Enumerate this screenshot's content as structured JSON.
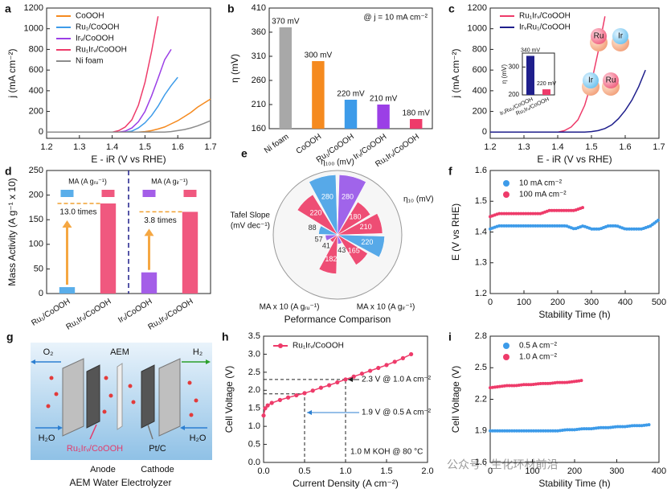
{
  "chart_data": [
    {
      "type": "line",
      "panel": "a",
      "xlabel": "E - iR (V vs RHE)",
      "ylabel": "j (mA cm⁻²)",
      "x": [
        1.2,
        1.22,
        1.24,
        1.26,
        1.28,
        1.3,
        1.32,
        1.34,
        1.36,
        1.38,
        1.4,
        1.42,
        1.44,
        1.46,
        1.48,
        1.5,
        1.52,
        1.54,
        1.56,
        1.58,
        1.6,
        1.62,
        1.64,
        1.66,
        1.68,
        1.7
      ],
      "xlim": [
        1.2,
        1.7
      ],
      "xticks": [
        1.2,
        1.3,
        1.4,
        1.5,
        1.6,
        1.7
      ],
      "ylim": [
        -60,
        1200
      ],
      "yticks": [
        0,
        200,
        400,
        600,
        800,
        1000,
        1200
      ],
      "series": [
        {
          "name": "CoOOH",
          "color": "#f58a1f",
          "values": [
            0,
            0,
            0,
            0,
            0,
            0,
            0,
            0,
            0,
            0,
            0,
            0,
            0,
            0,
            0,
            5,
            15,
            30,
            50,
            80,
            110,
            150,
            190,
            240,
            280,
            320
          ]
        },
        {
          "name": "Ru₁/CoOOH",
          "color": "#3d9be9",
          "values": [
            0,
            0,
            0,
            0,
            0,
            0,
            0,
            0,
            0,
            0,
            0,
            0,
            0,
            10,
            40,
            90,
            160,
            250,
            360,
            450,
            530,
            null,
            null,
            null,
            null,
            null
          ]
        },
        {
          "name": "Irᵥ/CoOOH",
          "color": "#9b3fe6",
          "values": [
            0,
            0,
            0,
            0,
            0,
            0,
            0,
            0,
            0,
            0,
            0,
            0,
            10,
            40,
            100,
            200,
            350,
            520,
            700,
            800,
            null,
            null,
            null,
            null,
            null,
            null
          ]
        },
        {
          "name": "Ru₁Irᵥ/CoOOH",
          "color": "#ee3b6a",
          "values": [
            0,
            0,
            0,
            0,
            0,
            0,
            0,
            0,
            0,
            0,
            0,
            15,
            50,
            120,
            260,
            480,
            780,
            1120,
            null,
            null,
            null,
            null,
            null,
            null,
            null,
            null
          ]
        },
        {
          "name": "Ni foam",
          "color": "#8c8c8c",
          "values": [
            0,
            0,
            0,
            0,
            0,
            0,
            0,
            0,
            0,
            0,
            0,
            0,
            0,
            0,
            0,
            0,
            0,
            0,
            0,
            5,
            15,
            25,
            40,
            60,
            85,
            110
          ]
        }
      ]
    },
    {
      "type": "bar",
      "panel": "b",
      "ylabel": "η (mV)",
      "annotations": [
        "@ j = 10 mA cm⁻²"
      ],
      "categories": [
        "Ni foam",
        "CoOOH",
        "Ru₁/CoOOH",
        "Irᵥ/CoOOH",
        "Ru₁Irᵥ/CoOOH"
      ],
      "values": [
        370,
        300,
        220,
        210,
        180
      ],
      "value_labels": [
        "370 mV",
        "300 mV",
        "220 mV",
        "210 mV",
        "180 mV"
      ],
      "colors": [
        "#a8a8a8",
        "#f58a1f",
        "#3d9be9",
        "#9b3fe6",
        "#ee3b6a"
      ],
      "ylim": [
        160,
        410
      ],
      "yticks": [
        160,
        210,
        260,
        310,
        360,
        410
      ]
    },
    {
      "type": "line",
      "panel": "c",
      "xlabel": "E - iR (V vs RHE)",
      "ylabel": "j (mA cm⁻²)",
      "x": [
        1.2,
        1.22,
        1.24,
        1.26,
        1.28,
        1.3,
        1.32,
        1.34,
        1.36,
        1.38,
        1.4,
        1.42,
        1.44,
        1.46,
        1.48,
        1.5,
        1.52,
        1.54,
        1.56,
        1.58,
        1.6,
        1.62,
        1.64,
        1.66,
        1.68,
        1.7
      ],
      "xlim": [
        1.2,
        1.7
      ],
      "xticks": [
        1.2,
        1.3,
        1.4,
        1.5,
        1.6,
        1.7
      ],
      "ylim": [
        -60,
        1200
      ],
      "yticks": [
        0,
        200,
        400,
        600,
        800,
        1000,
        1200
      ],
      "series": [
        {
          "name": "Ru₁Irᵥ/CoOOH",
          "color": "#ee3b6a",
          "values": [
            0,
            0,
            0,
            0,
            0,
            0,
            0,
            0,
            0,
            0,
            0,
            15,
            50,
            120,
            260,
            480,
            780,
            1120,
            null,
            null,
            null,
            null,
            null,
            null,
            null,
            null
          ]
        },
        {
          "name": "IrᵥRu₁/CoOOH",
          "color": "#1f1f8c",
          "values": [
            0,
            0,
            0,
            0,
            0,
            0,
            0,
            0,
            0,
            0,
            0,
            0,
            0,
            0,
            0,
            5,
            15,
            35,
            70,
            130,
            210,
            310,
            440,
            600,
            null,
            null
          ]
        }
      ],
      "beads": [
        "Ru",
        "Ir",
        "Ir",
        "Ru"
      ],
      "inset": {
        "type": "bar",
        "ylabel": "η (mV)",
        "categories": [
          "IrᵥRu₁/CoOOH",
          "Ru₁Irᵥ/CoOOH"
        ],
        "values": [
          340,
          220
        ],
        "value_labels": [
          "340 mV",
          "220 mV"
        ],
        "colors": [
          "#1f1f8c",
          "#ee3b6a"
        ],
        "ylim": [
          200,
          350
        ],
        "yticks": [
          200,
          300
        ]
      }
    },
    {
      "type": "bar",
      "panel": "d",
      "ylabel": "Mass Activity (A g⁻¹ x 10)",
      "categories": [
        "Ru₁/CoOOH",
        "Ru₁Irᵥ/CoOOH",
        "Irᵥ/CoOOH",
        "Ru₁Irᵥ/CoOOH"
      ],
      "values": [
        13,
        183,
        43,
        166
      ],
      "colors": [
        "#5aaeea",
        "#f0587f",
        "#a45ee8",
        "#f0587f"
      ],
      "legend": [
        "MA (A gᵣᵤ⁻¹)",
        "MA (A gᵢᵣ⁻¹)"
      ],
      "annotations": [
        "13.0 times",
        "3.8 times"
      ],
      "ylim": [
        0,
        250
      ],
      "yticks": [
        0,
        50,
        100,
        150,
        200,
        250
      ]
    },
    {
      "type": "rose",
      "panel": "e",
      "title": "Peformance Comparison",
      "axis_labels": [
        "η₁₀₀ (mV)",
        "η₁₀ (mV)",
        "MA x 10 (A gᵢᵣ⁻¹)",
        "MA x 10 (A gᵣᵤ⁻¹)",
        [
          "Tafel Slope",
          "(mV dec⁻¹)"
        ]
      ],
      "rlim": [
        0,
        300
      ],
      "sectors": [
        {
          "value": 220,
          "color": "#ee4d74"
        },
        {
          "value": 280,
          "color": "#57a9e8"
        },
        {
          "value": 280,
          "color": "#a064ea"
        },
        {
          "value": 180,
          "color": "#ee4d74"
        },
        {
          "value": 210,
          "color": "#ee4d74"
        },
        {
          "value": 220,
          "color": "#57a9e8"
        },
        {
          "value": 165,
          "color": "#ee4d74"
        },
        {
          "value": 43,
          "color": "#a064ea"
        },
        {
          "value": 182,
          "color": "#ee4d74"
        },
        {
          "value": 41,
          "color": "#ee4d74"
        },
        {
          "value": 57,
          "color": "#a064ea"
        },
        {
          "value": 88,
          "color": "#57a9e8"
        }
      ]
    },
    {
      "type": "line",
      "panel": "f",
      "xlabel": "Stability Time (h)",
      "ylabel": "E (V vs RHE)",
      "x": [
        0,
        25,
        50,
        75,
        100,
        125,
        150,
        175,
        200,
        225,
        250,
        275,
        300,
        325,
        350,
        375,
        400,
        425,
        450,
        475,
        500
      ],
      "xlim": [
        0,
        500
      ],
      "xticks": [
        0,
        100,
        200,
        300,
        400,
        500
      ],
      "ylim": [
        1.2,
        1.6
      ],
      "yticks": [
        1.2,
        1.3,
        1.4,
        1.5,
        1.6
      ],
      "series": [
        {
          "name": "10 mA cm⁻²",
          "color": "#3d9be9",
          "values": [
            1.41,
            1.42,
            1.42,
            1.42,
            1.42,
            1.42,
            1.42,
            1.42,
            1.42,
            1.42,
            1.41,
            1.42,
            1.41,
            1.41,
            1.42,
            1.42,
            1.41,
            1.41,
            1.41,
            1.42,
            1.44
          ]
        },
        {
          "name": "100 mA cm⁻²",
          "color": "#ee3b6a",
          "values": [
            1.45,
            1.46,
            1.46,
            1.46,
            1.46,
            1.46,
            1.46,
            1.47,
            1.47,
            1.47,
            1.47,
            1.48,
            null,
            null,
            null,
            null,
            null,
            null,
            null,
            null,
            null
          ]
        }
      ]
    },
    {
      "type": "line",
      "panel": "h",
      "xlabel": "Current Density (A cm⁻²)",
      "ylabel": "Cell Voltage (V)",
      "markers": true,
      "x": [
        0,
        0.02,
        0.05,
        0.1,
        0.2,
        0.3,
        0.4,
        0.5,
        0.6,
        0.7,
        0.8,
        0.9,
        1.0,
        1.1,
        1.2,
        1.3,
        1.4,
        1.5,
        1.6,
        1.7,
        1.8
      ],
      "xlim": [
        0,
        2
      ],
      "xticks": [
        {
          "value": 0,
          "label": "0.0"
        },
        0.5,
        {
          "value": 1,
          "label": "1.0"
        },
        1.5,
        {
          "value": 2,
          "label": "2.0"
        }
      ],
      "ylim": [
        0,
        3.5
      ],
      "yticks": [
        {
          "value": 0,
          "label": "0.0"
        },
        0.5,
        {
          "value": 1,
          "label": "1.0"
        },
        1.5,
        {
          "value": 2,
          "label": "2.0"
        },
        2.5,
        {
          "value": 3,
          "label": "3.0"
        },
        3.5
      ],
      "series": [
        {
          "name": "Ru₁Irᵥ/CoOOH",
          "color": "#ee3b6a",
          "values": [
            1.3,
            1.5,
            1.58,
            1.65,
            1.73,
            1.8,
            1.86,
            1.92,
            1.99,
            2.07,
            2.14,
            2.22,
            2.3,
            2.38,
            2.46,
            2.54,
            2.62,
            2.7,
            2.79,
            2.89,
            3.0
          ]
        }
      ],
      "guides": [
        {
          "x": 1.0,
          "y": 2.3
        },
        {
          "x": 0.5,
          "y": 1.9
        }
      ],
      "annotations": [
        "2.3 V @ 1.0 A cm⁻²",
        "1.9 V @ 0.5 A cm⁻²",
        "1.0 M KOH @ 80 °C"
      ]
    },
    {
      "type": "line",
      "panel": "i",
      "xlabel": "Stability Time (h)",
      "ylabel": "Cell Voltage (V)",
      "x": [
        0,
        20,
        40,
        60,
        80,
        100,
        120,
        140,
        160,
        180,
        200,
        220,
        240,
        260,
        280,
        300,
        320,
        340,
        360,
        380
      ],
      "xlim": [
        0,
        400
      ],
      "xticks": [
        0,
        100,
        200,
        300,
        400
      ],
      "ylim": [
        1.6,
        2.8
      ],
      "yticks": [
        1.6,
        1.9,
        2.2,
        2.5,
        2.8
      ],
      "series": [
        {
          "name": "0.5 A cm⁻²",
          "color": "#3d9be9",
          "values": [
            1.9,
            1.9,
            1.9,
            1.9,
            1.9,
            1.9,
            1.9,
            1.9,
            1.9,
            1.91,
            1.91,
            1.92,
            1.92,
            1.93,
            1.93,
            1.94,
            1.94,
            1.95,
            1.95,
            1.96
          ]
        },
        {
          "name": "1.0 A cm⁻²",
          "color": "#ee3b6a",
          "values": [
            2.31,
            2.32,
            2.33,
            2.33,
            2.34,
            2.34,
            2.35,
            2.35,
            2.36,
            2.36,
            2.37,
            2.38,
            null,
            null,
            null,
            null,
            null,
            null,
            null,
            null
          ]
        }
      ]
    }
  ],
  "diagram": {
    "panel": "g",
    "labels": {
      "o2": "O₂",
      "aem": "AEM",
      "h2": "H₂",
      "h2o_left": "H₂O",
      "h2o_right": "H₂O",
      "anode_catalyst": "Ru₁Irᵥ/CoOOH",
      "cathode_catalyst": "Pt/C",
      "anode": "Anode",
      "cathode": "Cathode"
    },
    "caption": "AEM Water Electrolyzer"
  },
  "watermark": "公众号 · 生化环材前沿"
}
